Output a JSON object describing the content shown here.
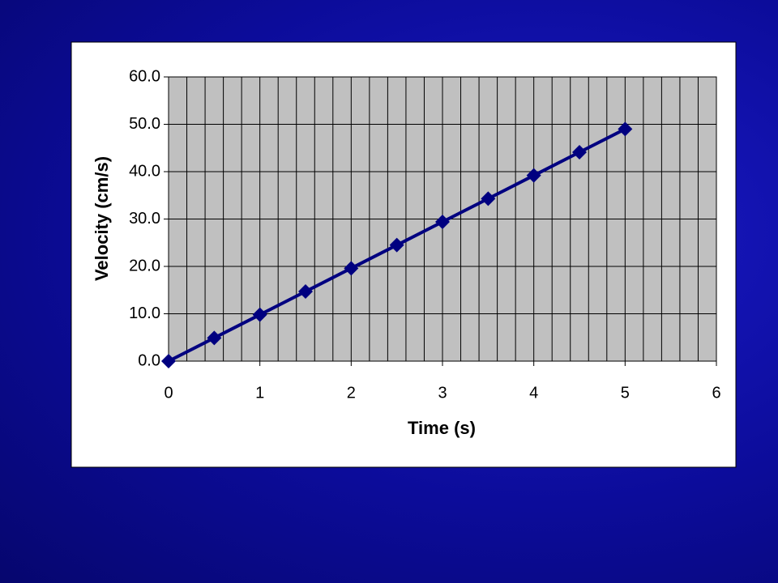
{
  "chart_data": {
    "type": "line",
    "x_label": "Time (s)",
    "y_label": "Velocity (cm/s)",
    "x": [
      0,
      0.5,
      1,
      1.5,
      2,
      2.5,
      3,
      3.5,
      4,
      4.5,
      5
    ],
    "series": [
      {
        "color": "#000080",
        "values": [
          0,
          4.9,
          9.8,
          14.7,
          19.6,
          24.5,
          29.4,
          34.3,
          39.2,
          44.1,
          49.0
        ]
      }
    ],
    "xlim": [
      0,
      6
    ],
    "xticks": [
      0,
      1,
      2,
      3,
      4,
      5,
      6
    ],
    "ylim": [
      0,
      60
    ],
    "yticks": [
      {
        "value": 0,
        "label": "0.0"
      },
      {
        "value": 10,
        "label": "10.0"
      },
      {
        "value": 20,
        "label": "20.0"
      },
      {
        "value": 30,
        "label": "30.0"
      },
      {
        "value": 40,
        "label": "40.0"
      },
      {
        "value": 50,
        "label": "50.0"
      },
      {
        "value": 60,
        "label": "60.0"
      }
    ],
    "grid": true,
    "x_minor_grid_step": 0.2,
    "plot_background": "#c0c0c0"
  }
}
